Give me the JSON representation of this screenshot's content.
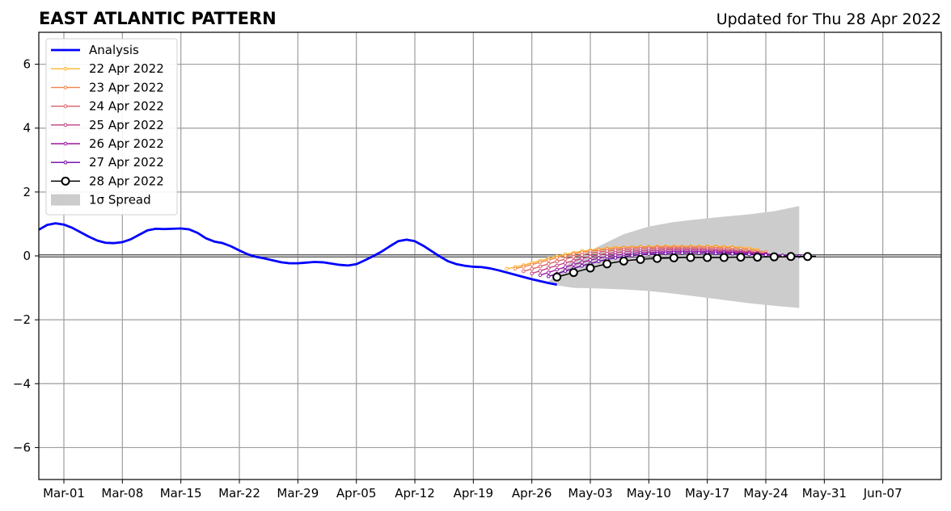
{
  "chart_data": {
    "type": "line",
    "title": "EAST ATLANTIC PATTERN",
    "subtitle": "Updated for Thu 28 Apr 2022",
    "xlim": [
      "2022-02-26",
      "2022-06-14"
    ],
    "ylim": [
      -7,
      7
    ],
    "yticks": [
      -6,
      -4,
      -2,
      0,
      2,
      4,
      6
    ],
    "ytick_labels": [
      "−6",
      "−4",
      "−2",
      "0",
      "2",
      "4",
      "6"
    ],
    "xticks": [
      "2022-03-01",
      "2022-03-08",
      "2022-03-15",
      "2022-03-22",
      "2022-03-29",
      "2022-04-05",
      "2022-04-12",
      "2022-04-19",
      "2022-04-26",
      "2022-05-03",
      "2022-05-10",
      "2022-05-17",
      "2022-05-24",
      "2022-05-31",
      "2022-06-07"
    ],
    "xtick_labels": [
      "Mar-01",
      "Mar-08",
      "Mar-15",
      "Mar-22",
      "Mar-29",
      "Apr-05",
      "Apr-12",
      "Apr-19",
      "Apr-26",
      "May-03",
      "May-10",
      "May-17",
      "May-24",
      "May-31",
      "Jun-07"
    ],
    "grid": true,
    "legend_position": "top-left",
    "legend": [
      {
        "label": "Analysis",
        "kind": "line",
        "color": "#0000ff"
      },
      {
        "label": "22 Apr 2022",
        "kind": "marker-line",
        "color": "#fdb42f"
      },
      {
        "label": "23 Apr 2022",
        "kind": "marker-line",
        "color": "#f1844b"
      },
      {
        "label": "24 Apr 2022",
        "kind": "marker-line",
        "color": "#dd5e66"
      },
      {
        "label": "25 Apr 2022",
        "kind": "marker-line",
        "color": "#c33d80"
      },
      {
        "label": "26 Apr 2022",
        "kind": "marker-line",
        "color": "#9c179e"
      },
      {
        "label": "27 Apr 2022",
        "kind": "marker-line",
        "color": "#6a00a8"
      },
      {
        "label": "28 Apr 2022",
        "kind": "circle-line",
        "color": "#000000"
      },
      {
        "label": "1σ Spread",
        "kind": "patch",
        "color": "#cccccc"
      }
    ],
    "analysis": {
      "name": "Analysis",
      "color": "#0000ff",
      "start": "2022-02-26",
      "values": [
        0.82,
        0.97,
        1.02,
        0.98,
        0.88,
        0.74,
        0.6,
        0.48,
        0.41,
        0.4,
        0.43,
        0.52,
        0.66,
        0.8,
        0.85,
        0.84,
        0.85,
        0.86,
        0.83,
        0.72,
        0.55,
        0.45,
        0.4,
        0.3,
        0.17,
        0.05,
        -0.03,
        -0.08,
        -0.14,
        -0.2,
        -0.23,
        -0.23,
        -0.21,
        -0.19,
        -0.2,
        -0.24,
        -0.28,
        -0.3,
        -0.26,
        -0.14,
        -0.01,
        0.13,
        0.3,
        0.46,
        0.51,
        0.46,
        0.32,
        0.15,
        -0.02,
        -0.17,
        -0.26,
        -0.31,
        -0.34,
        -0.35,
        -0.39,
        -0.45,
        -0.52,
        -0.59,
        -0.66,
        -0.73,
        -0.79,
        -0.85,
        -0.9
      ]
    },
    "forecasts": [
      {
        "name": "22 Apr 2022",
        "color": "#fdb42f",
        "start": "2022-04-23",
        "values": [
          -0.4,
          -0.35,
          -0.29,
          -0.22,
          -0.15,
          -0.08,
          -0.01,
          0.05,
          0.1,
          0.15,
          0.18,
          0.21,
          0.24,
          0.26,
          0.27,
          0.28,
          0.29,
          0.29,
          0.3,
          0.3,
          0.3,
          0.3,
          0.3,
          0.3,
          0.3,
          0.3,
          0.29,
          0.28,
          0.26,
          0.24,
          0.2
        ]
      },
      {
        "name": "23 Apr 2022",
        "color": "#f1844b",
        "start": "2022-04-24",
        "values": [
          -0.4,
          -0.34,
          -0.27,
          -0.2,
          -0.13,
          -0.06,
          0.0,
          0.06,
          0.11,
          0.15,
          0.18,
          0.21,
          0.23,
          0.25,
          0.26,
          0.27,
          0.27,
          0.28,
          0.28,
          0.28,
          0.28,
          0.28,
          0.28,
          0.28,
          0.27,
          0.26,
          0.25,
          0.23,
          0.2,
          0.16,
          0.12
        ]
      },
      {
        "name": "24 Apr 2022",
        "color": "#dd5e66",
        "start": "2022-04-25",
        "values": [
          -0.48,
          -0.41,
          -0.33,
          -0.25,
          -0.17,
          -0.1,
          -0.03,
          0.03,
          0.08,
          0.12,
          0.15,
          0.18,
          0.2,
          0.21,
          0.22,
          0.23,
          0.24,
          0.24,
          0.24,
          0.24,
          0.24,
          0.24,
          0.23,
          0.22,
          0.21,
          0.19,
          0.17,
          0.14,
          0.11,
          0.07,
          0.03
        ]
      },
      {
        "name": "25 Apr 2022",
        "color": "#c33d80",
        "start": "2022-04-26",
        "values": [
          -0.55,
          -0.47,
          -0.38,
          -0.3,
          -0.22,
          -0.15,
          -0.08,
          -0.02,
          0.03,
          0.07,
          0.1,
          0.13,
          0.15,
          0.16,
          0.17,
          0.18,
          0.19,
          0.19,
          0.19,
          0.19,
          0.19,
          0.18,
          0.17,
          0.16,
          0.15,
          0.13,
          0.11,
          0.09,
          0.06,
          0.03,
          0.0
        ]
      },
      {
        "name": "26 Apr 2022",
        "color": "#9c179e",
        "start": "2022-04-27",
        "values": [
          -0.6,
          -0.52,
          -0.43,
          -0.35,
          -0.27,
          -0.2,
          -0.13,
          -0.07,
          -0.02,
          0.02,
          0.05,
          0.08,
          0.1,
          0.11,
          0.12,
          0.13,
          0.14,
          0.14,
          0.14,
          0.14,
          0.13,
          0.13,
          0.12,
          0.11,
          0.1,
          0.09,
          0.07,
          0.05,
          0.03,
          0.01,
          -0.01
        ]
      },
      {
        "name": "27 Apr 2022",
        "color": "#6a00a8",
        "start": "2022-04-28",
        "values": [
          -0.64,
          -0.56,
          -0.47,
          -0.39,
          -0.31,
          -0.24,
          -0.17,
          -0.11,
          -0.06,
          -0.02,
          0.01,
          0.04,
          0.06,
          0.07,
          0.08,
          0.09,
          0.09,
          0.09,
          0.09,
          0.09,
          0.08,
          0.08,
          0.07,
          0.06,
          0.05,
          0.04,
          0.03,
          0.02,
          0.01,
          0.0,
          -0.01
        ]
      }
    ],
    "current_forecast": {
      "name": "28 Apr 2022",
      "color": "#000000",
      "start": "2022-04-29",
      "values": [
        -0.66,
        -0.59,
        -0.52,
        -0.45,
        -0.38,
        -0.31,
        -0.25,
        -0.2,
        -0.16,
        -0.13,
        -0.11,
        -0.09,
        -0.08,
        -0.07,
        -0.06,
        -0.05,
        -0.05,
        -0.05,
        -0.05,
        -0.05,
        -0.05,
        -0.04,
        -0.04,
        -0.04,
        -0.04,
        -0.03,
        -0.03,
        -0.03,
        -0.02,
        -0.02,
        -0.02,
        -0.01
      ]
    },
    "spread": {
      "name": "1σ Spread",
      "color": "#cccccc",
      "x": [
        "2022-04-28",
        "2022-05-01",
        "2022-05-04",
        "2022-05-07",
        "2022-05-10",
        "2022-05-13",
        "2022-05-16",
        "2022-05-19",
        "2022-05-22",
        "2022-05-25",
        "2022-05-28"
      ],
      "upper": [
        -0.8,
        -0.1,
        0.3,
        0.68,
        0.92,
        1.06,
        1.15,
        1.23,
        1.3,
        1.4,
        1.56
      ],
      "lower": [
        -0.88,
        -1.0,
        -1.02,
        -1.05,
        -1.1,
        -1.18,
        -1.28,
        -1.38,
        -1.48,
        -1.56,
        -1.63
      ]
    }
  }
}
